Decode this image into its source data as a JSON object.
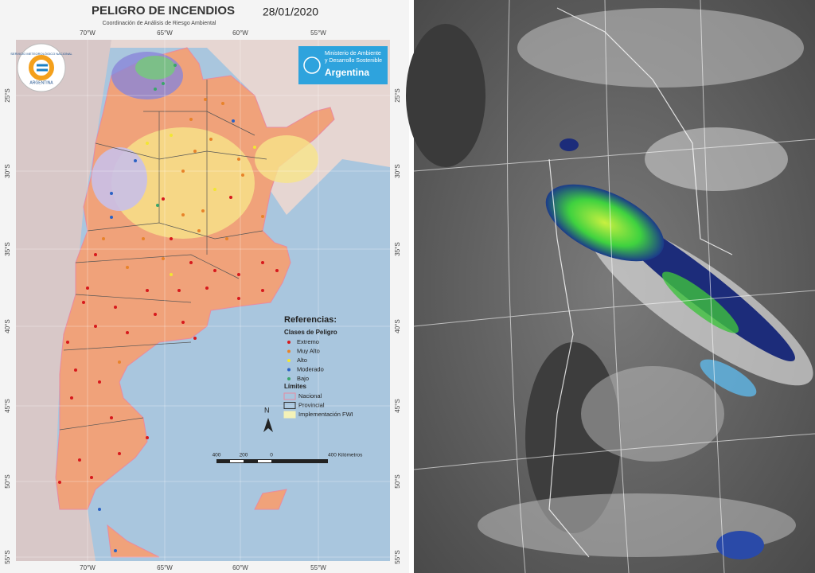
{
  "header": {
    "title": "PELIGRO DE INCENDIOS",
    "date": "28/01/2020",
    "subtitle": "Coordinación de Análisis de Riesgo Ambiental"
  },
  "logos": {
    "smn": {
      "name": "SERVICIO METEOROLÓGICO NACIONAL",
      "country": "ARGENTINA"
    },
    "ministry": {
      "line1": "Ministerio de Ambiente",
      "line2": "y Desarrollo Sostenible",
      "country": "Argentina"
    }
  },
  "grid": {
    "longitudes": [
      "70°W",
      "65°W",
      "60°W",
      "55°W"
    ],
    "latitudes": [
      "25°S",
      "30°S",
      "35°S",
      "40°S",
      "45°S",
      "50°S",
      "55°S"
    ]
  },
  "legend": {
    "title": "Referencias:",
    "classes_title": "Clases de Peligro",
    "classes": [
      {
        "label": "Extremo",
        "color": "#d7191c"
      },
      {
        "label": "Muy Alto",
        "color": "#e8832a"
      },
      {
        "label": "Alto",
        "color": "#f2e633"
      },
      {
        "label": "Moderado",
        "color": "#2b62c4"
      },
      {
        "label": "Bajo",
        "color": "#3aa56b"
      }
    ],
    "limits_title": "Límites",
    "limits": [
      {
        "label": "Nacional",
        "color": "#e88aa0"
      },
      {
        "label": "Provincial",
        "color": "#333333"
      },
      {
        "label": "Implementación FWI",
        "color": "#f4f2b8"
      }
    ]
  },
  "scale": {
    "labels": [
      "400",
      "200",
      "0",
      "400 Kilómetros"
    ]
  },
  "north": "N"
}
